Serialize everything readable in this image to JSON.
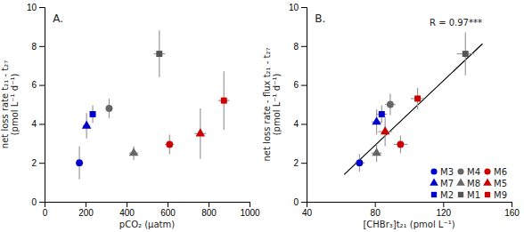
{
  "chart_data": [
    {
      "type": "scatter",
      "title": "A.",
      "xlabel": "pCO₂ (µatm)",
      "ylabel": "net loss rate t₂₁ - t₂₇\n(pmol L⁻¹ d⁻¹)",
      "xlim": [
        0,
        1000
      ],
      "ylim": [
        0,
        10
      ],
      "xticks": [
        0,
        200,
        400,
        600,
        800,
        1000
      ],
      "yticks": [
        0,
        2,
        4,
        6,
        8,
        10
      ],
      "series": [
        {
          "color": "#0000cc",
          "marker": "circle",
          "x": [
            170
          ],
          "values": [
            2.0
          ],
          "xerr": [
            18
          ],
          "yerr": [
            0.85
          ]
        },
        {
          "color": "#0000cc",
          "marker": "triangle",
          "x": [
            205
          ],
          "values": [
            3.9
          ],
          "xerr": [
            18
          ],
          "yerr": [
            0.65
          ]
        },
        {
          "color": "#0000cc",
          "marker": "square",
          "x": [
            235
          ],
          "values": [
            4.5
          ],
          "xerr": [
            15
          ],
          "yerr": [
            0.45
          ]
        },
        {
          "color": "#666666",
          "marker": "circle",
          "x": [
            315
          ],
          "values": [
            4.8
          ],
          "xerr": [
            18
          ],
          "yerr": [
            0.5
          ]
        },
        {
          "color": "#666666",
          "marker": "triangle",
          "x": [
            435
          ],
          "values": [
            2.5
          ],
          "xerr": [
            22
          ],
          "yerr": [
            0.35
          ]
        },
        {
          "color": "#555555",
          "marker": "square",
          "x": [
            560
          ],
          "values": [
            7.6
          ],
          "xerr": [
            28
          ],
          "yerr": [
            1.2
          ]
        },
        {
          "color": "#cc0000",
          "marker": "circle",
          "x": [
            610
          ],
          "values": [
            2.95
          ],
          "xerr": [
            22
          ],
          "yerr": [
            0.5
          ]
        },
        {
          "color": "#cc0000",
          "marker": "triangle",
          "x": [
            760
          ],
          "values": [
            3.5
          ],
          "xerr": [
            28
          ],
          "yerr": [
            1.3
          ]
        },
        {
          "color": "#cc0000",
          "marker": "square",
          "x": [
            875
          ],
          "values": [
            5.2
          ],
          "xerr": [
            28
          ],
          "yerr": [
            1.5
          ]
        }
      ]
    },
    {
      "type": "scatter",
      "title": "B.",
      "xlabel": "[CHBr₃]t₂₁ (pmol L⁻¹)",
      "ylabel": "net loss rate - flux t₂₁ - t₂₇\n(pmol L⁻¹ d⁻¹)",
      "annotation": "R = 0.97***",
      "xlim": [
        40,
        160
      ],
      "ylim": [
        0,
        10
      ],
      "xticks": [
        40,
        80,
        120,
        160
      ],
      "yticks": [
        0,
        2,
        4,
        6,
        8,
        10
      ],
      "legend": "lower right",
      "series": [
        {
          "name": "M3",
          "color": "#0000cc",
          "marker": "circle",
          "x": [
            71
          ],
          "values": [
            2.0
          ],
          "xerr": [
            3
          ],
          "yerr": [
            0.45
          ]
        },
        {
          "name": "M7",
          "color": "#0000cc",
          "marker": "triangle",
          "x": [
            81
          ],
          "values": [
            4.1
          ],
          "xerr": [
            3
          ],
          "yerr": [
            0.65
          ]
        },
        {
          "name": "M2",
          "color": "#0000cc",
          "marker": "square",
          "x": [
            84
          ],
          "values": [
            4.5
          ],
          "xerr": [
            3
          ],
          "yerr": [
            0.45
          ]
        },
        {
          "name": "M4",
          "color": "#666666",
          "marker": "circle",
          "x": [
            89
          ],
          "values": [
            5.0
          ],
          "xerr": [
            3
          ],
          "yerr": [
            0.55
          ]
        },
        {
          "name": "M8",
          "color": "#666666",
          "marker": "triangle",
          "x": [
            81
          ],
          "values": [
            2.5
          ],
          "xerr": [
            3
          ],
          "yerr": [
            0.45
          ]
        },
        {
          "name": "M1",
          "color": "#555555",
          "marker": "square",
          "x": [
            133
          ],
          "values": [
            7.6
          ],
          "xerr": [
            5
          ],
          "yerr": [
            1.1
          ]
        },
        {
          "name": "M6",
          "color": "#cc0000",
          "marker": "circle",
          "x": [
            95
          ],
          "values": [
            2.95
          ],
          "xerr": [
            4
          ],
          "yerr": [
            0.45
          ]
        },
        {
          "name": "M5",
          "color": "#cc0000",
          "marker": "triangle",
          "x": [
            86
          ],
          "values": [
            3.6
          ],
          "xerr": [
            4
          ],
          "yerr": [
            0.75
          ]
        },
        {
          "name": "M9",
          "color": "#cc0000",
          "marker": "square",
          "x": [
            105
          ],
          "values": [
            5.3
          ],
          "xerr": [
            4
          ],
          "yerr": [
            0.55
          ]
        },
        {
          "type": "line",
          "color": "black",
          "x": [
            62,
            143
          ],
          "values": [
            1.396,
            8.119
          ]
        }
      ]
    }
  ]
}
